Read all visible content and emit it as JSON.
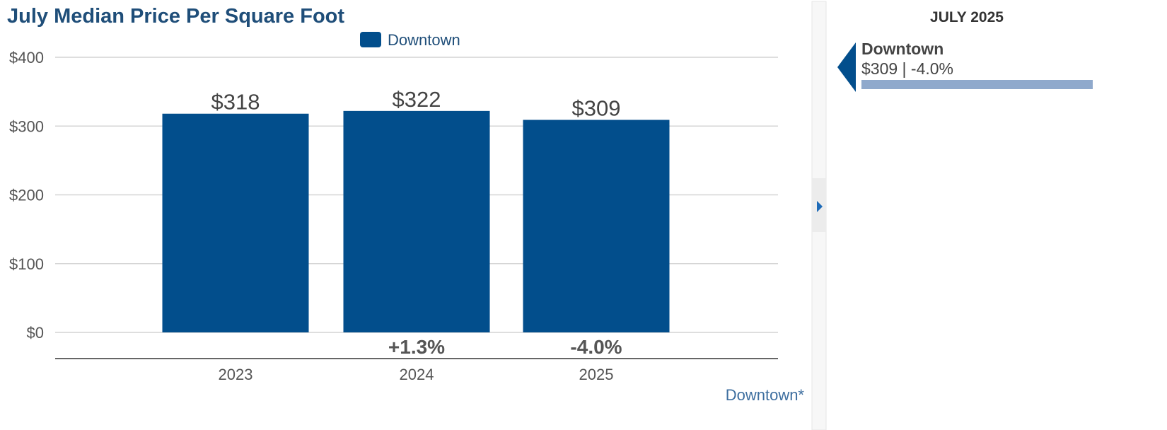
{
  "chart_data": {
    "type": "bar",
    "title": "July Median Price Per Square Foot",
    "categories": [
      "2023",
      "2024",
      "2025"
    ],
    "series": [
      {
        "name": "Downtown",
        "values": [
          318,
          322,
          309
        ]
      }
    ],
    "data_labels": [
      "$318",
      "$322",
      "$309"
    ],
    "change_labels": [
      "",
      "+1.3%",
      "-4.0%"
    ],
    "yticks": [
      0,
      100,
      200,
      300,
      400
    ],
    "ytick_labels": [
      "$0",
      "$100",
      "$200",
      "$300",
      "$400"
    ],
    "ylim": [
      0,
      400
    ],
    "grid": true,
    "legend_position": "top-center",
    "footnote": "Downtown*"
  },
  "side_panel": {
    "month_label": "JULY 2025",
    "entry_name": "Downtown",
    "entry_value": "$309 | -4.0%",
    "bar_fraction": 1.0
  },
  "colors": {
    "series": "#024e8c",
    "title": "#1f4e79",
    "legend_text": "#1f4e79",
    "footnote": "#3d6e9f",
    "panel_bar": "#8fa9cc",
    "collapse_arrow": "#1e6bb8",
    "grid": "#d4d4d4",
    "axis": "#666666"
  },
  "icons": {
    "collapse": "caret-right-icon",
    "panel_pointer": "pointer-left-icon"
  }
}
